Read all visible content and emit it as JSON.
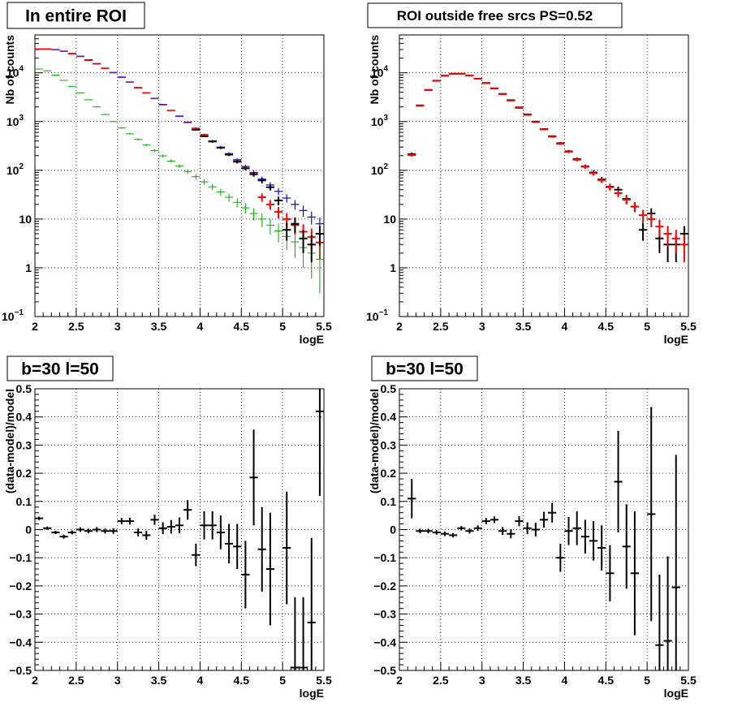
{
  "colors": {
    "data": "#000000",
    "model_total": "#ff0000",
    "model_alt": "#0000ff",
    "component": "#00aa00"
  },
  "chart_data": [
    {
      "type": "scatter",
      "title": "In entire ROI",
      "xlabel": "logE",
      "ylabel": "Nb of counts",
      "xlim": [
        2,
        5.5
      ],
      "ylim": [
        0.1,
        60000
      ],
      "yscale": "log",
      "grid": true,
      "x_ticks": [
        "2",
        "2.5",
        "3",
        "3.5",
        "4",
        "4.5",
        "5",
        "5.5"
      ],
      "y_ticks": [
        {
          "value": 0.1,
          "mant": "10",
          "exp": "−1"
        },
        {
          "value": 1,
          "mant": "1",
          "exp": ""
        },
        {
          "value": 10,
          "mant": "10",
          "exp": ""
        },
        {
          "value": 100,
          "mant": "10",
          "exp": "2"
        },
        {
          "value": 1000,
          "mant": "10",
          "exp": "3"
        },
        {
          "value": 10000,
          "mant": "10",
          "exp": "4"
        }
      ],
      "series": [
        {
          "color": "#0000ff",
          "width": 1.2,
          "x": [
            2.05,
            2.15,
            2.25,
            2.35,
            2.45,
            2.55,
            2.65,
            2.75,
            2.85,
            2.95,
            3.05,
            3.15,
            3.25,
            3.35,
            3.45,
            3.55,
            3.65,
            3.75,
            3.85,
            3.95,
            4.05,
            4.15,
            4.25,
            4.35,
            4.45,
            4.55,
            4.65,
            4.75,
            4.85,
            4.95,
            5.05,
            5.15,
            5.25,
            5.35,
            5.45
          ],
          "y": [
            31000,
            31000,
            30000,
            28000,
            25000,
            22000,
            18500,
            15500,
            12500,
            10200,
            8200,
            6500,
            5000,
            3900,
            3000,
            2250,
            1700,
            1300,
            970,
            730,
            540,
            400,
            300,
            220,
            165,
            120,
            90,
            66,
            50,
            37,
            27,
            20,
            15,
            11,
            8
          ],
          "err": [
            176,
            176,
            173,
            167,
            158,
            148,
            136,
            124,
            112,
            101,
            91,
            81,
            71,
            62,
            55,
            47,
            41,
            36,
            31,
            27,
            23,
            20,
            17,
            15,
            13,
            11,
            9.5,
            8.1,
            7.1,
            6.1,
            5.2,
            4.5,
            3.9,
            3.3,
            2.8
          ]
        },
        {
          "color": "#ff0000",
          "width": 1.2,
          "x": [
            2.05,
            2.15,
            2.25,
            2.35,
            2.45,
            2.55,
            2.65,
            2.75,
            2.85,
            2.95,
            3.05,
            3.15,
            3.25,
            3.35,
            3.45,
            3.55,
            3.65,
            3.75,
            3.85,
            3.95,
            4.05,
            4.15,
            4.25,
            4.35,
            4.45,
            4.55,
            4.65
          ],
          "y": [
            30500,
            30500,
            29500,
            27500,
            24500,
            21500,
            18000,
            15200,
            12300,
            10000,
            8000,
            6400,
            4900,
            3850,
            2950,
            2200,
            1680,
            1270,
            950,
            720,
            530,
            390,
            295,
            215,
            160,
            118,
            88
          ],
          "err": [
            175,
            175,
            172,
            166,
            157,
            147,
            134,
            123,
            111,
            100,
            89,
            80,
            70,
            62,
            54,
            47,
            41,
            36,
            31,
            27,
            23,
            20,
            17,
            15,
            13,
            11,
            9.4
          ]
        },
        {
          "color": "#ff0000",
          "width": 2,
          "x": [
            4.75,
            4.85,
            4.95,
            5.05,
            5.15,
            5.25,
            5.35,
            5.45
          ],
          "y": [
            28,
            20,
            14,
            10,
            7.5,
            5.5,
            4.3,
            3.3
          ],
          "err": [
            5.3,
            4.5,
            3.7,
            3.2,
            2.7,
            2.3,
            2.1,
            1.8
          ]
        },
        {
          "color": "#00aa00",
          "width": 1,
          "x": [
            2.05,
            2.15,
            2.25,
            2.35,
            2.45,
            2.55,
            2.65,
            2.75,
            2.85,
            2.95,
            3.05,
            3.15,
            3.25,
            3.35,
            3.45,
            3.55,
            3.65,
            3.75,
            3.85,
            3.95,
            4.05,
            4.15,
            4.25,
            4.35,
            4.45,
            4.55,
            4.65,
            4.75,
            4.85,
            4.95,
            5.05,
            5.15,
            5.25,
            5.35,
            5.45
          ],
          "y": [
            12000,
            11000,
            9000,
            7000,
            5300,
            3900,
            2800,
            2000,
            1400,
            1000,
            740,
            560,
            430,
            330,
            255,
            198,
            155,
            122,
            95,
            74,
            58,
            46,
            36,
            28,
            22,
            17,
            13,
            10,
            7.5,
            5.7,
            4.4,
            3.4,
            2.6,
            2,
            1.5
          ],
          "err": [
            110,
            105,
            95,
            84,
            73,
            62,
            53,
            45,
            37,
            32,
            27,
            24,
            21,
            18,
            16,
            14,
            12.5,
            11,
            9.7,
            8.6,
            7.6,
            6.8,
            6,
            5.3,
            4.7,
            4.1,
            3.6,
            3.2,
            2.7,
            2.4,
            2.1,
            1.8,
            1.6,
            1.4,
            1.2
          ]
        },
        {
          "color": "#000000",
          "width": 2,
          "x": [
            3.95,
            4.05,
            4.15,
            4.25,
            4.35,
            4.45,
            4.55,
            4.65,
            4.75,
            4.85,
            4.95,
            5.05,
            5.15,
            5.25,
            5.35,
            5.45
          ],
          "y": [
            680,
            500,
            390,
            290,
            210,
            150,
            110,
            83,
            62,
            45,
            24,
            6,
            8,
            4,
            3,
            5
          ],
          "err": [
            26,
            22,
            20,
            17,
            14.5,
            12.2,
            10.5,
            9.1,
            7.9,
            6.7,
            4.9,
            2.4,
            2.8,
            2,
            1.7,
            2.2
          ]
        }
      ]
    },
    {
      "type": "scatter",
      "title": "ROI outside free srcs PS=0.52",
      "xlabel": "logE",
      "ylabel": "Nb of counts",
      "xlim": [
        2,
        5.5
      ],
      "ylim": [
        0.1,
        60000
      ],
      "yscale": "log",
      "grid": true,
      "x_ticks": [
        "2",
        "2.5",
        "3",
        "3.5",
        "4",
        "4.5",
        "5",
        "5.5"
      ],
      "y_ticks": [
        {
          "value": 0.1,
          "mant": "10",
          "exp": "−1"
        },
        {
          "value": 1,
          "mant": "1",
          "exp": ""
        },
        {
          "value": 10,
          "mant": "10",
          "exp": ""
        },
        {
          "value": 100,
          "mant": "10",
          "exp": "2"
        },
        {
          "value": 1000,
          "mant": "10",
          "exp": "3"
        },
        {
          "value": 10000,
          "mant": "10",
          "exp": "4"
        }
      ],
      "series": [
        {
          "color": "#000000",
          "width": 2,
          "x": [
            2.15,
            2.25,
            2.35,
            2.45,
            2.55,
            2.65,
            2.75,
            2.85,
            2.95,
            3.05,
            3.15,
            3.25,
            3.35,
            3.45,
            3.55,
            3.65,
            3.75,
            3.85,
            3.95,
            4.05,
            4.15,
            4.25,
            4.35,
            4.45,
            4.55,
            4.65,
            4.75,
            4.85,
            4.95,
            5.05,
            5.15,
            5.25,
            5.35,
            5.45
          ],
          "y": [
            215,
            2150,
            4450,
            6900,
            8750,
            9600,
            9600,
            8800,
            7600,
            6200,
            4800,
            3700,
            2750,
            1950,
            1400,
            1000,
            700,
            500,
            360,
            245,
            170,
            120,
            90,
            65,
            46,
            40,
            26,
            18,
            6,
            13,
            4,
            3,
            3,
            5
          ],
          "err": [
            15,
            46,
            67,
            83,
            94,
            98,
            98,
            94,
            87,
            79,
            69,
            61,
            52,
            44,
            37,
            32,
            26,
            22,
            19,
            16,
            13,
            11,
            9.5,
            8.1,
            6.8,
            6.3,
            5.1,
            4.2,
            2.4,
            3.6,
            2,
            1.7,
            1.7,
            2.2
          ]
        },
        {
          "color": "#ff0000",
          "width": 2,
          "x": [
            2.15,
            2.25,
            2.35,
            2.45,
            2.55,
            2.65,
            2.75,
            2.85,
            2.95,
            3.05,
            3.15,
            3.25,
            3.35,
            3.45,
            3.55,
            3.65,
            3.75,
            3.85,
            3.95,
            4.05,
            4.15,
            4.25,
            4.35,
            4.45,
            4.55,
            4.65,
            4.75,
            4.85,
            4.95,
            5.05,
            5.15,
            5.25,
            5.35,
            5.45
          ],
          "y": [
            205,
            2120,
            4400,
            6850,
            8700,
            9500,
            9550,
            8750,
            7550,
            6150,
            4750,
            3650,
            2700,
            1900,
            1370,
            980,
            690,
            490,
            350,
            240,
            165,
            118,
            87,
            63,
            45,
            34,
            25,
            18,
            12,
            10,
            7,
            5,
            4,
            3
          ],
          "err": [
            14,
            46,
            66,
            83,
            93,
            97,
            98,
            94,
            87,
            78,
            69,
            60,
            52,
            44,
            37,
            31,
            26,
            22,
            19,
            15,
            13,
            11,
            9.3,
            7.9,
            6.7,
            5.8,
            5,
            4.2,
            3.5,
            3.2,
            2.6,
            2.2,
            2,
            1.7
          ]
        }
      ]
    },
    {
      "type": "scatter",
      "title": "b=30 l=50",
      "xlabel": "logE",
      "ylabel": "(data-model)/model",
      "xlim": [
        2,
        5.5
      ],
      "ylim": [
        -0.5,
        0.5
      ],
      "yscale": "linear",
      "grid": true,
      "x_ticks": [
        "2",
        "2.5",
        "3",
        "3.5",
        "4",
        "4.5",
        "5",
        "5.5"
      ],
      "y_ticks": [
        {
          "value": -0.5,
          "label": "−0.5"
        },
        {
          "value": -0.4,
          "label": "−0.4"
        },
        {
          "value": -0.3,
          "label": "−0.3"
        },
        {
          "value": -0.2,
          "label": "−0.2"
        },
        {
          "value": -0.1,
          "label": "−0.1"
        },
        {
          "value": 0,
          "label": "0"
        },
        {
          "value": 0.1,
          "label": "0.1"
        },
        {
          "value": 0.2,
          "label": "0.2"
        },
        {
          "value": 0.3,
          "label": "0.3"
        },
        {
          "value": 0.4,
          "label": "0.4"
        },
        {
          "value": 0.5,
          "label": "0.5"
        }
      ],
      "series": [
        {
          "color": "#000000",
          "width": 2,
          "x": [
            2.05,
            2.15,
            2.25,
            2.35,
            2.45,
            2.55,
            2.65,
            2.75,
            2.85,
            2.95,
            3.05,
            3.15,
            3.25,
            3.35,
            3.45,
            3.55,
            3.65,
            3.75,
            3.85,
            3.95,
            4.05,
            4.15,
            4.25,
            4.35,
            4.45,
            4.55,
            4.65,
            4.75,
            4.85,
            4.95,
            5.05,
            5.15,
            5.25,
            5.35,
            5.45
          ],
          "y": [
            0.04,
            0.005,
            -0.01,
            -0.025,
            -0.01,
            0.0,
            -0.005,
            0.0,
            -0.005,
            -0.005,
            0.03,
            0.03,
            -0.01,
            -0.02,
            0.035,
            0.005,
            0.01,
            0.015,
            0.07,
            -0.09,
            0.015,
            0.015,
            -0.01,
            -0.05,
            -0.06,
            -0.16,
            0.185,
            -0.07,
            -0.14,
            null,
            -0.065,
            -0.49,
            -0.49,
            -0.33,
            0.42
          ],
          "err": [
            0.006,
            0.006,
            0.006,
            0.007,
            0.007,
            0.008,
            0.008,
            0.009,
            0.009,
            0.01,
            0.011,
            0.012,
            0.014,
            0.016,
            0.018,
            0.021,
            0.024,
            0.028,
            0.035,
            0.04,
            0.05,
            0.05,
            0.06,
            0.07,
            0.08,
            0.12,
            0.17,
            0.15,
            0.2,
            null,
            0.2,
            0.25,
            0.25,
            0.3,
            0.3
          ]
        }
      ]
    },
    {
      "type": "scatter",
      "title": "b=30 l=50",
      "xlabel": "logE",
      "ylabel": "(data-model)/model",
      "xlim": [
        2,
        5.5
      ],
      "ylim": [
        -0.5,
        0.5
      ],
      "yscale": "linear",
      "grid": true,
      "x_ticks": [
        "2",
        "2.5",
        "3",
        "3.5",
        "4",
        "4.5",
        "5",
        "5.5"
      ],
      "y_ticks": [
        {
          "value": -0.5,
          "label": "−0.5"
        },
        {
          "value": -0.4,
          "label": "−0.4"
        },
        {
          "value": -0.3,
          "label": "−0.3"
        },
        {
          "value": -0.2,
          "label": "−0.2"
        },
        {
          "value": -0.1,
          "label": "−0.1"
        },
        {
          "value": 0,
          "label": "0"
        },
        {
          "value": 0.1,
          "label": "0.1"
        },
        {
          "value": 0.2,
          "label": "0.2"
        },
        {
          "value": 0.3,
          "label": "0.3"
        },
        {
          "value": 0.4,
          "label": "0.4"
        },
        {
          "value": 0.5,
          "label": "0.5"
        }
      ],
      "series": [
        {
          "color": "#000000",
          "width": 2,
          "x": [
            2.15,
            2.25,
            2.35,
            2.45,
            2.55,
            2.65,
            2.75,
            2.85,
            2.95,
            3.05,
            3.15,
            3.25,
            3.35,
            3.45,
            3.55,
            3.65,
            3.75,
            3.85,
            3.95,
            4.05,
            4.15,
            4.25,
            4.35,
            4.45,
            4.55,
            4.65,
            4.75,
            4.85,
            4.95,
            5.05,
            5.15,
            5.25,
            5.35
          ],
          "y": [
            0.11,
            -0.005,
            -0.005,
            -0.01,
            -0.015,
            -0.02,
            0.005,
            -0.005,
            0.005,
            0.03,
            0.035,
            -0.005,
            -0.015,
            0.03,
            0.005,
            0.0,
            0.035,
            0.06,
            -0.1,
            -0.005,
            0.005,
            -0.025,
            -0.04,
            -0.065,
            -0.155,
            0.17,
            -0.06,
            -0.155,
            null,
            0.055,
            -0.41,
            -0.395,
            -0.205
          ],
          "err": [
            0.07,
            0.008,
            0.008,
            0.008,
            0.008,
            0.008,
            0.008,
            0.009,
            0.01,
            0.011,
            0.012,
            0.014,
            0.016,
            0.018,
            0.021,
            0.024,
            0.028,
            0.035,
            0.05,
            0.05,
            0.06,
            0.06,
            0.07,
            0.08,
            0.1,
            0.18,
            0.15,
            0.22,
            null,
            0.38,
            0.25,
            0.3,
            0.47
          ]
        }
      ]
    }
  ]
}
